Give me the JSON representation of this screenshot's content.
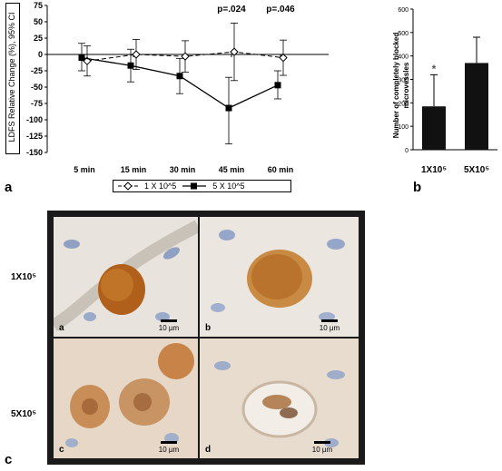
{
  "panel_labels": {
    "a": "a",
    "b": "b",
    "c": "c"
  },
  "chart_data": [
    {
      "type": "line",
      "ylabel": "LDFS Relative Change (%), 95% CI",
      "categories": [
        "5 min",
        "15 min",
        "30 min",
        "45 min",
        "60 min"
      ],
      "yticks": [
        75,
        50,
        25,
        0,
        -25,
        -50,
        -75,
        -100,
        -125,
        -150
      ],
      "ylim": [
        -150,
        75
      ],
      "series": [
        {
          "name": "1 X 10^5",
          "style": "dashed-open-diamond",
          "values": [
            -10,
            0,
            -3,
            4,
            -5
          ],
          "ci_low": [
            -33,
            -23,
            -27,
            -40,
            -32
          ],
          "ci_high": [
            13,
            23,
            21,
            48,
            22
          ]
        },
        {
          "name": "5 X 10^5",
          "style": "solid-filled-square",
          "values": [
            -5,
            -17,
            -33,
            -82,
            -47
          ],
          "ci_low": [
            -25,
            -42,
            -60,
            -137,
            -68
          ],
          "ci_high": [
            17,
            8,
            -6,
            -35,
            -25
          ]
        }
      ],
      "annotations": [
        {
          "category": "45 min",
          "text": "p=.024"
        },
        {
          "category": "60 min",
          "text": "p=.046"
        }
      ],
      "legend": "bottom",
      "grid": false
    },
    {
      "type": "bar",
      "ylabel": "Number of completely blocked microvessles",
      "categories": [
        "1X10⁵",
        "5X10⁵"
      ],
      "values": [
        185,
        370
      ],
      "error_high": [
        320,
        480
      ],
      "yticks": [
        0,
        100,
        200,
        300,
        400,
        500,
        600
      ],
      "ylim": [
        0,
        600
      ],
      "marker": {
        "category": "1X10⁵",
        "value": 345,
        "symbol": "*"
      },
      "grid": false
    }
  ],
  "micrographs": {
    "row_labels": [
      "1X10⁵",
      "5X10⁵"
    ],
    "tiles": [
      {
        "letter": "a",
        "scale": "10 µm"
      },
      {
        "letter": "b",
        "scale": "10 µm"
      },
      {
        "letter": "c",
        "scale": "10 µm"
      },
      {
        "letter": "d",
        "scale": "10 µm"
      }
    ],
    "colors": {
      "background_light": "#e9e4df",
      "stain": "#b3651f",
      "nuclei": "#8f9fbf"
    }
  }
}
